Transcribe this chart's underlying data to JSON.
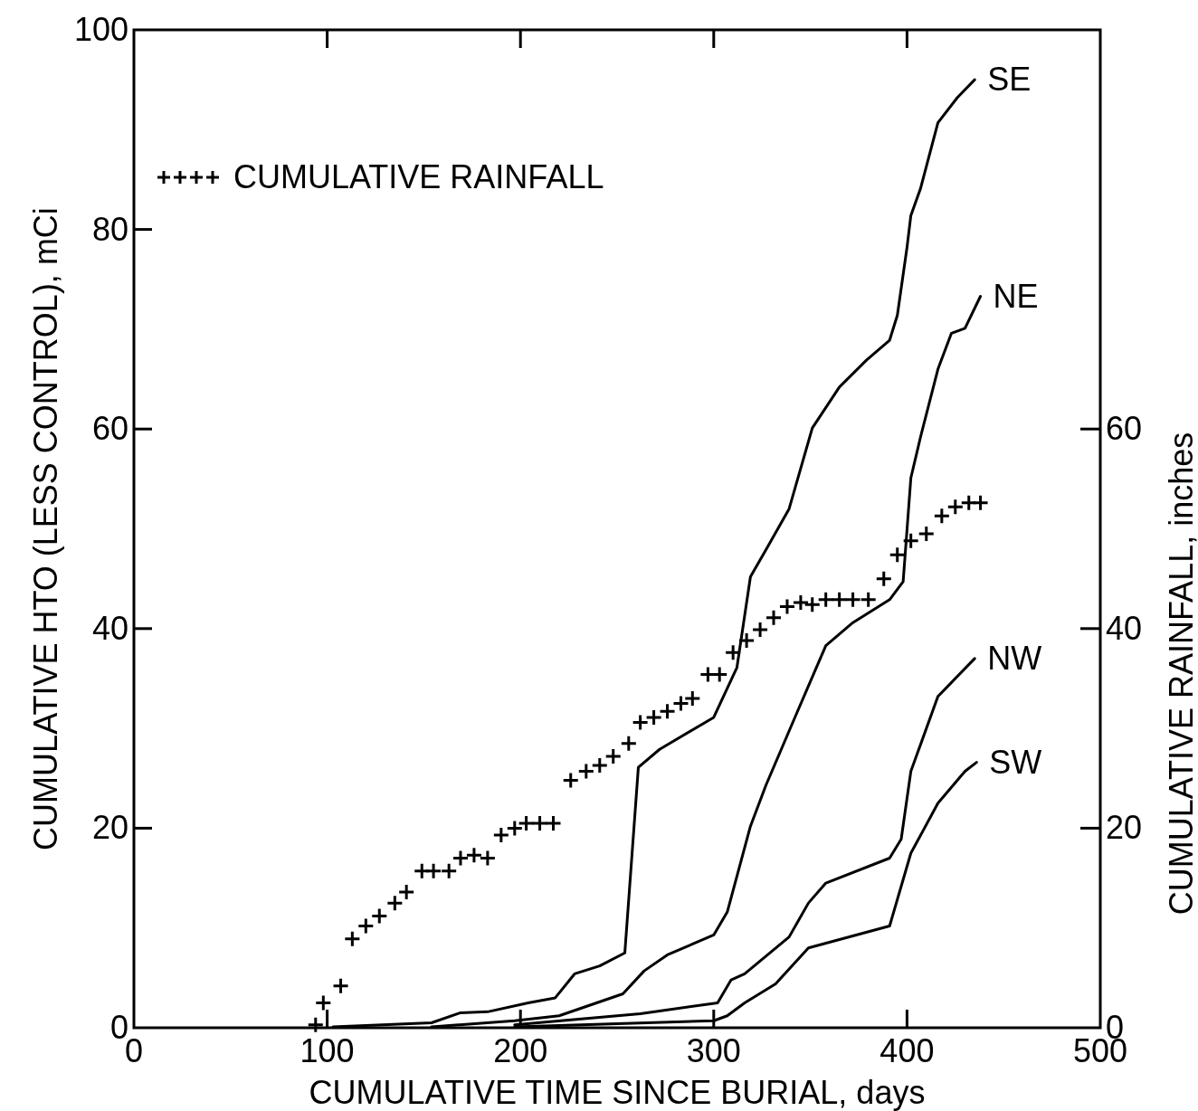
{
  "chart_data": {
    "type": "line",
    "xlabel": "CUMULATIVE TIME SINCE BURIAL, days",
    "ylabel": "CUMULATIVE HTO (LESS CONTROL), mCi",
    "y2label": "CUMULATIVE RAINFALL, inches",
    "xlim": [
      0,
      500
    ],
    "xticks": [
      0,
      100,
      200,
      300,
      400,
      500
    ],
    "ylim": [
      0,
      100
    ],
    "yticks": [
      0,
      20,
      40,
      60,
      80,
      100
    ],
    "y2lim": [
      0,
      100
    ],
    "y2ticks": [
      0,
      20,
      40,
      60
    ],
    "legend": "top left",
    "grid": false,
    "series": [
      {
        "name": "CUMULATIVE RAINFALL",
        "type": "scatter",
        "marker": "cross",
        "color": "#000000",
        "x": [
          94,
          98,
          107,
          113,
          120,
          127,
          135,
          141,
          149,
          155,
          163,
          169,
          176,
          183,
          190,
          197,
          203,
          210,
          217,
          226,
          234,
          241,
          248,
          256,
          262,
          269,
          276,
          283,
          289,
          297,
          303,
          310,
          317,
          324,
          331,
          338,
          345,
          351,
          358,
          365,
          372,
          380,
          388,
          395,
          402,
          410,
          418,
          425,
          432,
          438
        ],
        "values": [
          0.3,
          2.5,
          4.2,
          8.9,
          10.2,
          11.2,
          12.5,
          13.6,
          15.7,
          15.7,
          15.7,
          17.0,
          17.3,
          17.0,
          19.3,
          20.0,
          20.5,
          20.5,
          20.5,
          24.8,
          25.7,
          26.3,
          27.2,
          28.5,
          30.6,
          31.1,
          31.7,
          32.5,
          33.0,
          35.4,
          35.4,
          37.6,
          38.8,
          39.9,
          41.1,
          42.2,
          42.6,
          42.4,
          42.9,
          42.9,
          42.9,
          42.9,
          45.0,
          47.4,
          48.8,
          49.5,
          51.3,
          52.2,
          52.6,
          52.6
        ]
      },
      {
        "name": "SE",
        "type": "line",
        "color": "#000000",
        "x": [
          103,
          154,
          169,
          183,
          204,
          218,
          228,
          241,
          254,
          261,
          272,
          300,
          312,
          319,
          327,
          339,
          351,
          365,
          379,
          391,
          395,
          400,
          402,
          407,
          416,
          426,
          435
        ],
        "values": [
          0.1,
          0.5,
          1.5,
          1.6,
          2.5,
          3.0,
          5.4,
          6.2,
          7.5,
          26.1,
          27.9,
          31.1,
          36.1,
          45.2,
          47.9,
          52,
          60.1,
          64.2,
          66.9,
          68.9,
          71.4,
          78.2,
          81.4,
          84.1,
          90.7,
          93.2,
          95.0
        ]
      },
      {
        "name": "NE",
        "type": "line",
        "color": "#000000",
        "x": [
          154,
          197,
          220,
          253,
          264,
          276,
          300,
          307,
          319,
          327,
          342,
          358,
          372,
          391,
          398,
          402,
          407,
          416,
          423,
          430,
          438
        ],
        "values": [
          0.1,
          0.7,
          1.2,
          3.4,
          5.7,
          7.3,
          9.3,
          11.6,
          20.2,
          24.3,
          31.1,
          38.3,
          40.6,
          42.9,
          44.7,
          55.1,
          59.2,
          66.0,
          69.6,
          70.1,
          73.3
        ]
      },
      {
        "name": "NW",
        "type": "line",
        "color": "#000000",
        "x": [
          197,
          262,
          302,
          309,
          316,
          339,
          349,
          358,
          391,
          397,
          402,
          416,
          435
        ],
        "values": [
          0.3,
          1.4,
          2.5,
          4.8,
          5.4,
          9.1,
          12.5,
          14.5,
          17.0,
          18.9,
          25.7,
          33.2,
          37.0
        ]
      },
      {
        "name": "SW",
        "type": "line",
        "color": "#000000",
        "x": [
          197,
          300,
          307,
          316,
          332,
          349,
          391,
          402,
          416,
          430,
          436
        ],
        "values": [
          0.1,
          0.7,
          1.2,
          2.5,
          4.4,
          8.0,
          10.2,
          17.5,
          22.5,
          25.7,
          26.6
        ]
      }
    ]
  }
}
